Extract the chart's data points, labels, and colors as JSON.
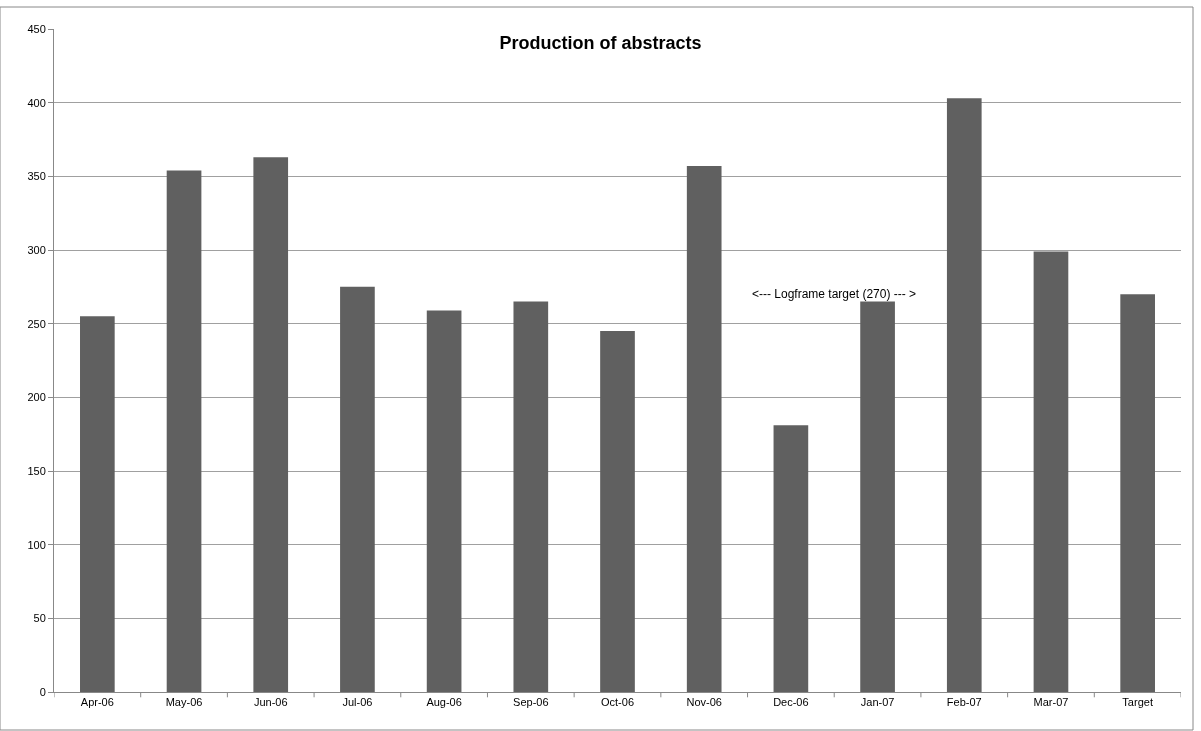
{
  "chart_data": {
    "type": "bar",
    "title": "Production of abstracts",
    "categories": [
      "Apr-06",
      "May-06",
      "Jun-06",
      "Jul-06",
      "Aug-06",
      "Sep-06",
      "Oct-06",
      "Nov-06",
      "Dec-06",
      "Jan-07",
      "Feb-07",
      "Mar-07",
      "Target"
    ],
    "values": [
      255,
      354,
      363,
      275,
      259,
      265,
      245,
      357,
      181,
      265,
      403,
      299,
      270
    ],
    "color": "#606060",
    "ylim": [
      0,
      450
    ],
    "yticks": [
      0,
      50,
      100,
      150,
      200,
      250,
      300,
      350,
      400,
      450
    ],
    "grid": "y",
    "annotations": [
      "<--- Logframe target (270) --- >"
    ]
  }
}
